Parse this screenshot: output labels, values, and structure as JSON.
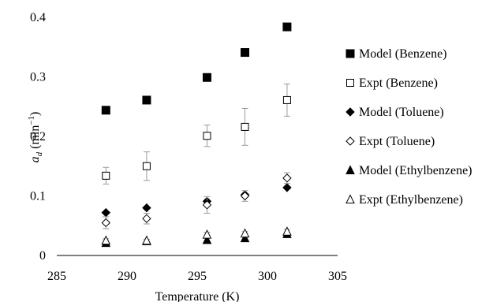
{
  "chart_data": {
    "type": "scatter",
    "xlabel": "Temperature (K)",
    "ylabel_main": "a",
    "ylabel_sub": "d",
    "ylabel_unit": " (min",
    "ylabel_exp": "−1",
    "ylabel_close": ")",
    "xlim": [
      285,
      305
    ],
    "ylim": [
      0,
      0.4
    ],
    "x_ticks": [
      "285",
      "290",
      "295",
      "300",
      "305"
    ],
    "y_ticks": [
      "0",
      "0.1",
      "0.2",
      "0.3",
      "0.4"
    ],
    "grid": false,
    "legend_position": "right",
    "series": [
      {
        "name": "Model (Benzene)",
        "marker": "square-filled",
        "x": [
          288.5,
          291.4,
          295.7,
          298.4,
          301.4
        ],
        "y": [
          0.244,
          0.261,
          0.299,
          0.341,
          0.384
        ]
      },
      {
        "name": "Expt (Benzene)",
        "marker": "square-open",
        "x": [
          288.5,
          291.4,
          295.7,
          298.4,
          301.4
        ],
        "y": [
          0.134,
          0.15,
          0.201,
          0.216,
          0.261
        ],
        "err": [
          0.014,
          0.024,
          0.018,
          0.031,
          0.027
        ]
      },
      {
        "name": "Model (Toluene)",
        "marker": "diamond-filled",
        "x": [
          288.5,
          291.4,
          295.7,
          298.4,
          301.4
        ],
        "y": [
          0.072,
          0.08,
          0.091,
          0.102,
          0.114
        ]
      },
      {
        "name": "Expt (Toluene)",
        "marker": "diamond-open",
        "x": [
          288.5,
          291.4,
          295.7,
          298.4,
          301.4
        ],
        "y": [
          0.055,
          0.062,
          0.085,
          0.1,
          0.13
        ],
        "err": [
          0.01,
          0.009,
          0.014,
          0.009,
          0.009
        ]
      },
      {
        "name": "Model (Ethylbenzene)",
        "marker": "triangle-filled",
        "x": [
          288.5,
          291.4,
          295.7,
          298.4,
          301.4
        ],
        "y": [
          0.021,
          0.024,
          0.026,
          0.029,
          0.036
        ]
      },
      {
        "name": "Expt (Ethylbenzene)",
        "marker": "triangle-open",
        "x": [
          288.5,
          291.4,
          295.7,
          298.4,
          301.4
        ],
        "y": [
          0.025,
          0.025,
          0.035,
          0.037,
          0.04
        ],
        "err": [
          0.003,
          0.002,
          0.004,
          0.003,
          0.004
        ]
      }
    ]
  }
}
